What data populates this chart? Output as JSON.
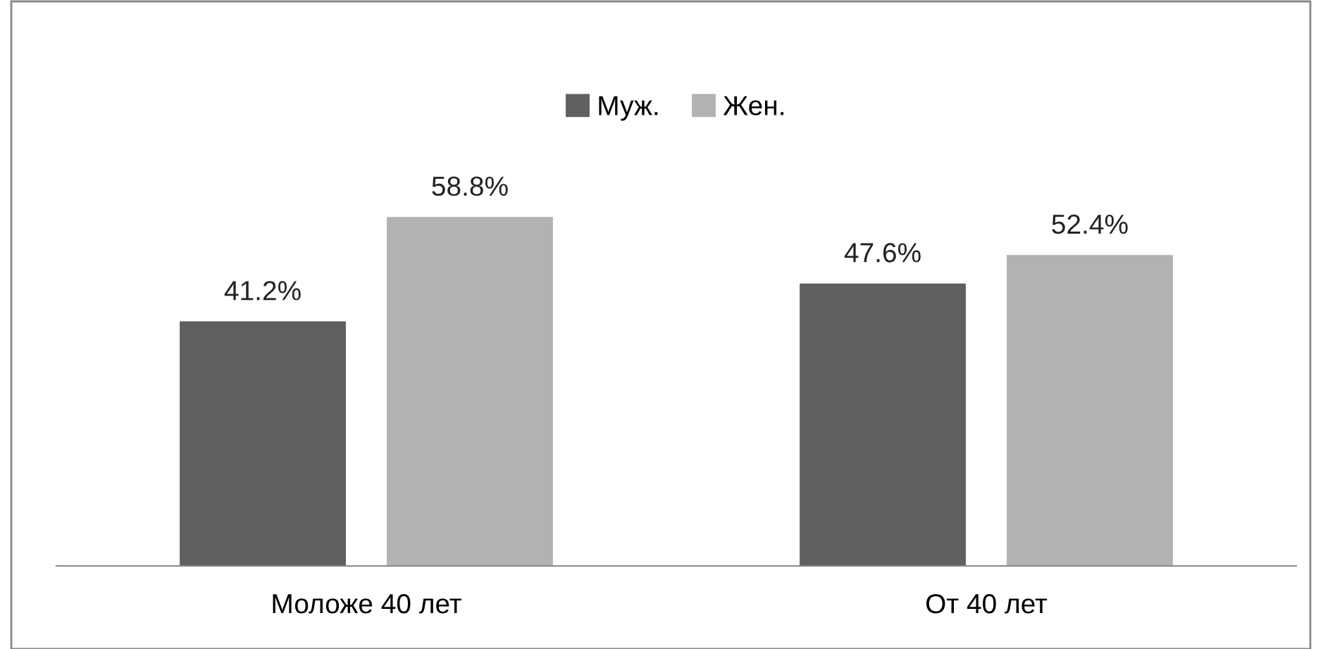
{
  "chart_data": {
    "type": "bar",
    "categories": [
      "Моложе 40 лет",
      "От 40 лет"
    ],
    "series": [
      {
        "name": "Муж.",
        "color": "#606060",
        "values": [
          41.2,
          47.6
        ],
        "value_labels": [
          "41.2%",
          "47.6%"
        ]
      },
      {
        "name": "Жен.",
        "color": "#b2b2b2",
        "values": [
          58.8,
          52.4
        ],
        "value_labels": [
          "58.8%",
          "52.4%"
        ]
      }
    ],
    "legend": "top",
    "grid": false
  }
}
